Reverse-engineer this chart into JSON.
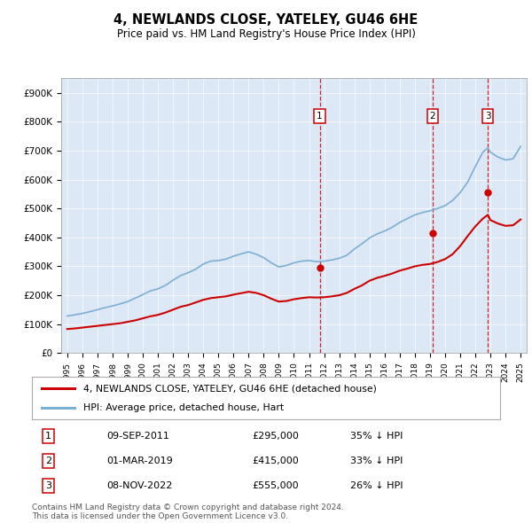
{
  "title": "4, NEWLANDS CLOSE, YATELEY, GU46 6HE",
  "subtitle": "Price paid vs. HM Land Registry's House Price Index (HPI)",
  "plot_bg_color": "#dce8f5",
  "ylim": [
    0,
    950000
  ],
  "yticks": [
    0,
    100000,
    200000,
    300000,
    400000,
    500000,
    600000,
    700000,
    800000,
    900000
  ],
  "ytick_labels": [
    "£0",
    "£100K",
    "£200K",
    "£300K",
    "£400K",
    "£500K",
    "£600K",
    "£700K",
    "£800K",
    "£900K"
  ],
  "hpi_color": "#7bafd4",
  "price_color": "#cc0000",
  "marker_color": "#cc0000",
  "sale_date_nums": [
    2011.708,
    2019.167,
    2022.833
  ],
  "sale_prices": [
    295000,
    415000,
    555000
  ],
  "sale_labels": [
    "1",
    "2",
    "3"
  ],
  "legend_label_price": "4, NEWLANDS CLOSE, YATELEY, GU46 6HE (detached house)",
  "legend_label_hpi": "HPI: Average price, detached house, Hart",
  "table_data": [
    [
      "1",
      "09-SEP-2011",
      "£295,000",
      "35% ↓ HPI"
    ],
    [
      "2",
      "01-MAR-2019",
      "£415,000",
      "33% ↓ HPI"
    ],
    [
      "3",
      "08-NOV-2022",
      "£555,000",
      "26% ↓ HPI"
    ]
  ],
  "footer": "Contains HM Land Registry data © Crown copyright and database right 2024.\nThis data is licensed under the Open Government Licence v3.0.",
  "hpi_waypoints": [
    [
      1995.0,
      128000
    ],
    [
      1995.5,
      132000
    ],
    [
      1996.0,
      137000
    ],
    [
      1996.5,
      143000
    ],
    [
      1997.0,
      150000
    ],
    [
      1997.5,
      157000
    ],
    [
      1998.0,
      163000
    ],
    [
      1998.5,
      170000
    ],
    [
      1999.0,
      178000
    ],
    [
      1999.5,
      190000
    ],
    [
      2000.0,
      202000
    ],
    [
      2000.5,
      215000
    ],
    [
      2001.0,
      222000
    ],
    [
      2001.5,
      234000
    ],
    [
      2002.0,
      252000
    ],
    [
      2002.5,
      268000
    ],
    [
      2003.0,
      278000
    ],
    [
      2003.5,
      290000
    ],
    [
      2004.0,
      308000
    ],
    [
      2004.5,
      318000
    ],
    [
      2005.0,
      320000
    ],
    [
      2005.5,
      325000
    ],
    [
      2006.0,
      335000
    ],
    [
      2006.5,
      343000
    ],
    [
      2007.0,
      350000
    ],
    [
      2007.5,
      342000
    ],
    [
      2008.0,
      330000
    ],
    [
      2008.5,
      312000
    ],
    [
      2009.0,
      298000
    ],
    [
      2009.5,
      303000
    ],
    [
      2010.0,
      312000
    ],
    [
      2010.5,
      318000
    ],
    [
      2011.0,
      320000
    ],
    [
      2011.5,
      316000
    ],
    [
      2012.0,
      318000
    ],
    [
      2012.5,
      322000
    ],
    [
      2013.0,
      328000
    ],
    [
      2013.5,
      338000
    ],
    [
      2014.0,
      360000
    ],
    [
      2014.5,
      378000
    ],
    [
      2015.0,
      398000
    ],
    [
      2015.5,
      412000
    ],
    [
      2016.0,
      422000
    ],
    [
      2016.5,
      435000
    ],
    [
      2017.0,
      452000
    ],
    [
      2017.5,
      465000
    ],
    [
      2018.0,
      478000
    ],
    [
      2018.5,
      486000
    ],
    [
      2019.0,
      492000
    ],
    [
      2019.5,
      500000
    ],
    [
      2020.0,
      510000
    ],
    [
      2020.5,
      528000
    ],
    [
      2021.0,
      555000
    ],
    [
      2021.5,
      592000
    ],
    [
      2022.0,
      645000
    ],
    [
      2022.5,
      695000
    ],
    [
      2022.83,
      710000
    ],
    [
      2023.0,
      695000
    ],
    [
      2023.5,
      678000
    ],
    [
      2024.0,
      668000
    ],
    [
      2024.5,
      672000
    ],
    [
      2025.0,
      715000
    ]
  ],
  "price_waypoints": [
    [
      1995.0,
      83000
    ],
    [
      1995.5,
      85000
    ],
    [
      1996.0,
      88000
    ],
    [
      1996.5,
      91000
    ],
    [
      1997.0,
      94000
    ],
    [
      1997.5,
      97000
    ],
    [
      1998.0,
      100000
    ],
    [
      1998.5,
      103000
    ],
    [
      1999.0,
      108000
    ],
    [
      1999.5,
      113000
    ],
    [
      2000.0,
      120000
    ],
    [
      2000.5,
      127000
    ],
    [
      2001.0,
      132000
    ],
    [
      2001.5,
      140000
    ],
    [
      2002.0,
      150000
    ],
    [
      2002.5,
      160000
    ],
    [
      2003.0,
      166000
    ],
    [
      2003.5,
      175000
    ],
    [
      2004.0,
      184000
    ],
    [
      2004.5,
      190000
    ],
    [
      2005.0,
      193000
    ],
    [
      2005.5,
      196000
    ],
    [
      2006.0,
      202000
    ],
    [
      2006.5,
      207000
    ],
    [
      2007.0,
      212000
    ],
    [
      2007.5,
      208000
    ],
    [
      2008.0,
      200000
    ],
    [
      2008.5,
      188000
    ],
    [
      2009.0,
      178000
    ],
    [
      2009.5,
      180000
    ],
    [
      2010.0,
      186000
    ],
    [
      2010.5,
      190000
    ],
    [
      2011.0,
      193000
    ],
    [
      2011.5,
      192000
    ],
    [
      2012.0,
      193000
    ],
    [
      2012.5,
      196000
    ],
    [
      2013.0,
      200000
    ],
    [
      2013.5,
      208000
    ],
    [
      2014.0,
      222000
    ],
    [
      2014.5,
      234000
    ],
    [
      2015.0,
      250000
    ],
    [
      2015.5,
      260000
    ],
    [
      2016.0,
      267000
    ],
    [
      2016.5,
      275000
    ],
    [
      2017.0,
      285000
    ],
    [
      2017.5,
      292000
    ],
    [
      2018.0,
      300000
    ],
    [
      2018.5,
      305000
    ],
    [
      2019.0,
      308000
    ],
    [
      2019.5,
      315000
    ],
    [
      2020.0,
      325000
    ],
    [
      2020.5,
      342000
    ],
    [
      2021.0,
      370000
    ],
    [
      2021.5,
      405000
    ],
    [
      2022.0,
      438000
    ],
    [
      2022.5,
      465000
    ],
    [
      2022.83,
      478000
    ],
    [
      2023.0,
      460000
    ],
    [
      2023.5,
      448000
    ],
    [
      2024.0,
      440000
    ],
    [
      2024.5,
      442000
    ],
    [
      2025.0,
      462000
    ]
  ]
}
